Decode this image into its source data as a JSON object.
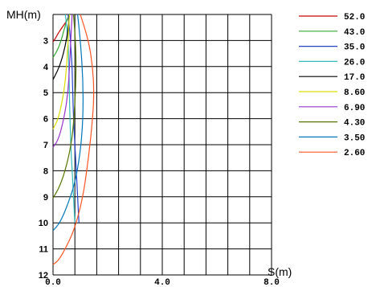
{
  "chart_data": {
    "type": "line",
    "title": "",
    "xlabel": "S(m)",
    "ylabel": "MH(m)",
    "xlim": [
      0,
      8
    ],
    "ylim": [
      12,
      2
    ],
    "grid": true,
    "x_tick_labels": [
      "0.0",
      "4.0",
      "8.0"
    ],
    "y_tick_labels": [
      "3",
      "4",
      "5",
      "6",
      "7",
      "8",
      "9",
      "10",
      "11",
      "12"
    ],
    "legend_position": "right",
    "series": [
      {
        "name": "52.0",
        "color": "#cc0000",
        "points": [
          [
            0.0,
            3.05
          ],
          [
            0.1,
            2.9
          ],
          [
            0.2,
            2.7
          ],
          [
            0.3,
            2.55
          ],
          [
            0.4,
            2.4
          ],
          [
            0.5,
            2.25
          ],
          [
            0.6,
            2.0
          ]
        ]
      },
      {
        "name": "43.0",
        "color": "#33aa33",
        "points": [
          [
            0.0,
            3.65
          ],
          [
            0.15,
            3.4
          ],
          [
            0.3,
            3.0
          ],
          [
            0.4,
            2.6
          ],
          [
            0.5,
            2.25
          ],
          [
            0.6,
            2.0
          ]
        ]
      },
      {
        "name": "35.0",
        "color": "#2244cc",
        "points": [
          [
            0.55,
            2.0
          ],
          [
            0.6,
            2.5
          ],
          [
            0.65,
            3.2
          ],
          [
            0.7,
            4.0
          ],
          [
            0.72,
            5.0
          ],
          [
            0.75,
            6.0
          ],
          [
            0.8,
            7.0
          ],
          [
            0.85,
            8.0
          ],
          [
            0.9,
            9.0
          ],
          [
            0.95,
            10.0
          ]
        ]
      },
      {
        "name": "26.0",
        "color": "#33bbbb",
        "points": [
          [
            0.45,
            2.0
          ],
          [
            0.5,
            2.5
          ],
          [
            0.55,
            3.0
          ],
          [
            0.58,
            4.0
          ],
          [
            0.6,
            5.0
          ],
          [
            0.62,
            6.0
          ],
          [
            0.65,
            7.0
          ],
          [
            0.7,
            8.0
          ],
          [
            0.75,
            9.0
          ],
          [
            0.8,
            10.0
          ]
        ]
      },
      {
        "name": "17.0",
        "color": "#000000",
        "points": [
          [
            0.0,
            4.5
          ],
          [
            0.15,
            4.2
          ],
          [
            0.3,
            3.8
          ],
          [
            0.45,
            3.2
          ],
          [
            0.55,
            2.6
          ],
          [
            0.6,
            2.0
          ]
        ]
      },
      {
        "name": "8.60",
        "color": "#dddd00",
        "points": [
          [
            0.0,
            6.4
          ],
          [
            0.2,
            6.0
          ],
          [
            0.4,
            5.0
          ],
          [
            0.5,
            4.0
          ],
          [
            0.55,
            3.0
          ],
          [
            0.6,
            2.0
          ]
        ]
      },
      {
        "name": "6.90",
        "color": "#9933cc",
        "points": [
          [
            0.0,
            7.1
          ],
          [
            0.2,
            6.8
          ],
          [
            0.4,
            6.0
          ],
          [
            0.55,
            5.0
          ],
          [
            0.6,
            4.0
          ],
          [
            0.65,
            3.0
          ],
          [
            0.7,
            2.0
          ]
        ]
      },
      {
        "name": "4.30",
        "color": "#557700",
        "points": [
          [
            0.0,
            9.05
          ],
          [
            0.25,
            8.6
          ],
          [
            0.5,
            7.8
          ],
          [
            0.7,
            6.8
          ],
          [
            0.8,
            5.5
          ],
          [
            0.85,
            4.0
          ],
          [
            0.82,
            3.0
          ],
          [
            0.75,
            2.0
          ]
        ]
      },
      {
        "name": "3.50",
        "color": "#0077bb",
        "points": [
          [
            0.0,
            10.3
          ],
          [
            0.25,
            10.0
          ],
          [
            0.5,
            9.4
          ],
          [
            0.8,
            8.5
          ],
          [
            1.0,
            7.3
          ],
          [
            1.1,
            6.0
          ],
          [
            1.1,
            4.5
          ],
          [
            1.0,
            3.0
          ],
          [
            0.9,
            2.0
          ]
        ]
      },
      {
        "name": "2.60",
        "color": "#ff5522",
        "points": [
          [
            0.0,
            11.6
          ],
          [
            0.2,
            11.45
          ],
          [
            0.5,
            10.9
          ],
          [
            0.8,
            10.2
          ],
          [
            1.1,
            9.0
          ],
          [
            1.3,
            7.5
          ],
          [
            1.45,
            6.0
          ],
          [
            1.5,
            5.0
          ],
          [
            1.45,
            4.0
          ],
          [
            1.3,
            3.0
          ],
          [
            1.0,
            2.0
          ]
        ]
      }
    ]
  }
}
